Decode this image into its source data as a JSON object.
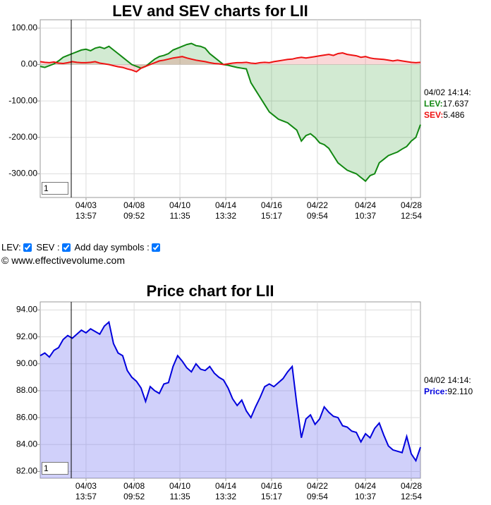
{
  "chart_data": [
    {
      "type": "line",
      "title": "LEV and SEV charts for LII",
      "fill": true,
      "xlim": [
        0,
        83
      ],
      "xticks": [
        {
          "value": 10,
          "label": "04/03",
          "time": "13:57"
        },
        {
          "value": 20.5,
          "label": "04/08",
          "time": "09:52"
        },
        {
          "value": 30.5,
          "label": "04/10",
          "time": "11:35"
        },
        {
          "value": 40.5,
          "label": "04/14",
          "time": "13:32"
        },
        {
          "value": 50.5,
          "label": "04/16",
          "time": "15:17"
        },
        {
          "value": 60.5,
          "label": "04/22",
          "time": "09:54"
        },
        {
          "value": 71,
          "label": "04/24",
          "time": "10:37"
        },
        {
          "value": 81,
          "label": "04/28",
          "time": "12:54"
        }
      ],
      "ylim": [
        -365,
        123
      ],
      "yticks": [
        {
          "value": 100,
          "label": "100.00"
        },
        {
          "value": 0,
          "label": "0.00"
        },
        {
          "value": -100,
          "label": "-100.00"
        },
        {
          "value": -200,
          "label": "-200.00"
        },
        {
          "value": -300,
          "label": "-300.00"
        }
      ],
      "grid": true,
      "readout_time": "04/02 14:14:",
      "series": [
        {
          "label": "LEV:",
          "readout": "17.637",
          "color": "#118811",
          "area": "rgba(30,150,30,0.2)",
          "values": [
            -5,
            -8,
            -3,
            2,
            10,
            20,
            25,
            30,
            35,
            40,
            42,
            38,
            45,
            48,
            44,
            50,
            40,
            30,
            20,
            10,
            0,
            -5,
            -10,
            -5,
            5,
            15,
            22,
            25,
            30,
            40,
            45,
            50,
            55,
            58,
            52,
            50,
            45,
            30,
            20,
            10,
            0,
            -2,
            -5,
            -8,
            -10,
            -12,
            -50,
            -70,
            -90,
            -110,
            -130,
            -140,
            -150,
            -155,
            -160,
            -170,
            -180,
            -210,
            -195,
            -190,
            -200,
            -215,
            -220,
            -230,
            -250,
            -270,
            -280,
            -290,
            -295,
            -300,
            -310,
            -320,
            -305,
            -300,
            -270,
            -260,
            -250,
            -245,
            -240,
            -232,
            -225,
            -210,
            -200,
            -165
          ]
        },
        {
          "label": "SEV:",
          "readout": "5.486",
          "color": "#ee1111",
          "area": "rgba(230,60,60,0.2)",
          "values": [
            8,
            6,
            5,
            7,
            4,
            3,
            5,
            8,
            6,
            5,
            5,
            6,
            8,
            4,
            2,
            0,
            -3,
            -6,
            -8,
            -12,
            -15,
            -20,
            -10,
            -5,
            0,
            5,
            10,
            12,
            15,
            18,
            20,
            22,
            18,
            15,
            12,
            10,
            8,
            5,
            3,
            2,
            0,
            2,
            4,
            5,
            5,
            6,
            4,
            3,
            5,
            6,
            5,
            8,
            10,
            12,
            14,
            15,
            18,
            20,
            18,
            20,
            22,
            24,
            26,
            28,
            25,
            30,
            32,
            28,
            26,
            24,
            20,
            22,
            18,
            16,
            15,
            14,
            12,
            10,
            12,
            10,
            8,
            6,
            5,
            6
          ]
        }
      ]
    },
    {
      "type": "line",
      "title": "Price chart for LII",
      "fill": true,
      "xlim": [
        0,
        83
      ],
      "xticks": [
        {
          "value": 10,
          "label": "04/03",
          "time": "13:57"
        },
        {
          "value": 20.5,
          "label": "04/08",
          "time": "09:52"
        },
        {
          "value": 30.5,
          "label": "04/10",
          "time": "11:35"
        },
        {
          "value": 40.5,
          "label": "04/14",
          "time": "13:32"
        },
        {
          "value": 50.5,
          "label": "04/16",
          "time": "15:17"
        },
        {
          "value": 60.5,
          "label": "04/22",
          "time": "09:54"
        },
        {
          "value": 71,
          "label": "04/24",
          "time": "10:37"
        },
        {
          "value": 81,
          "label": "04/28",
          "time": "12:54"
        }
      ],
      "ylim": [
        81.5,
        94.6
      ],
      "yticks": [
        {
          "value": 94,
          "label": "94.00"
        },
        {
          "value": 92,
          "label": "92.00"
        },
        {
          "value": 90,
          "label": "90.00"
        },
        {
          "value": 88,
          "label": "88.00"
        },
        {
          "value": 86,
          "label": "86.00"
        },
        {
          "value": 84,
          "label": "84.00"
        },
        {
          "value": 82,
          "label": "82.00"
        }
      ],
      "grid": true,
      "readout_time": "04/02 14:14:",
      "series": [
        {
          "label": "Price:",
          "readout": "92.110",
          "color": "#0000dd",
          "area": "rgba(120,120,240,0.35)",
          "values": [
            90.6,
            90.8,
            90.5,
            91,
            91.2,
            91.8,
            92.1,
            91.9,
            92.2,
            92.5,
            92.3,
            92.6,
            92.4,
            92.2,
            92.8,
            93.1,
            91.5,
            90.8,
            90.6,
            89.5,
            89,
            88.7,
            88.2,
            87.2,
            88.3,
            88,
            87.8,
            88.5,
            88.6,
            89.8,
            90.6,
            90.2,
            89.7,
            89.4,
            90,
            89.6,
            89.5,
            89.8,
            89.3,
            89,
            88.8,
            88.2,
            87.4,
            86.9,
            87.3,
            86.5,
            86,
            86.8,
            87.5,
            88.3,
            88.5,
            88.3,
            88.6,
            88.9,
            89.4,
            89.8,
            87,
            84.5,
            85.9,
            86.2,
            85.5,
            85.9,
            86.8,
            86.4,
            86.1,
            86,
            85.4,
            85.3,
            85,
            84.9,
            84.2,
            84.8,
            84.5,
            85.2,
            85.6,
            84.7,
            83.9,
            83.6,
            83.5,
            83.4,
            84.6,
            83.3,
            82.8,
            83.8
          ]
        }
      ]
    }
  ],
  "inputs": [
    "1",
    "1"
  ],
  "controls": [
    "LEV:",
    "SEV :",
    "Add day symbols :"
  ],
  "copyright": "© www.effectivevolume.com"
}
